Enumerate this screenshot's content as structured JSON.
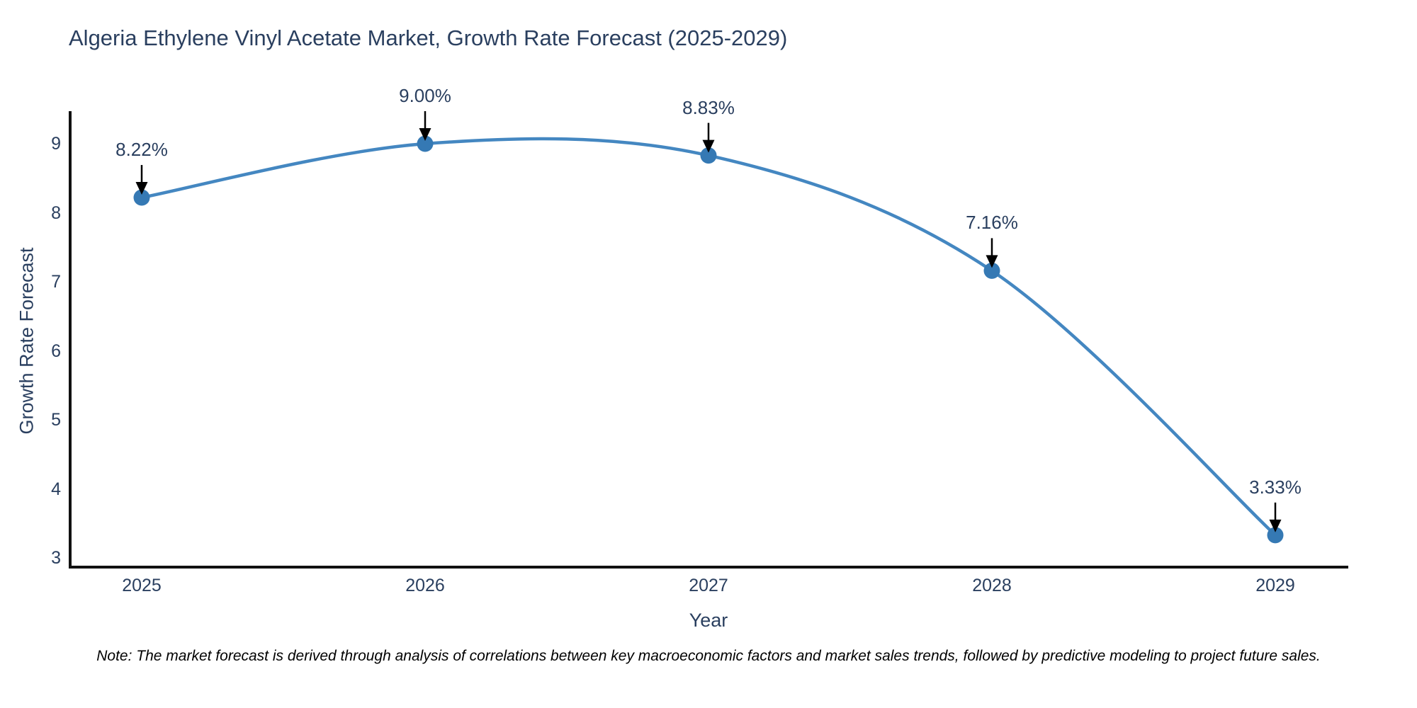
{
  "title": "Algeria Ethylene Vinyl Acetate Market, Growth Rate Forecast (2025-2029)",
  "note": "Note: The market forecast is derived through analysis of correlations between key macroeconomic factors and market sales trends, followed by predictive modeling to project future sales.",
  "chart_data": {
    "type": "line",
    "title": "Algeria Ethylene Vinyl Acetate Market, Growth Rate Forecast (2025-2029)",
    "xlabel": "Year",
    "ylabel": "Growth Rate Forecast",
    "x": [
      2025,
      2026,
      2027,
      2028,
      2029
    ],
    "values": [
      8.22,
      9.0,
      8.83,
      7.16,
      3.33
    ],
    "point_labels": [
      "8.22%",
      "9.00%",
      "8.83%",
      "7.16%",
      "3.33%"
    ],
    "yticks": [
      3,
      4,
      5,
      6,
      7,
      8,
      9
    ],
    "xticks": [
      "2025",
      "2026",
      "2027",
      "2028",
      "2029"
    ],
    "ylim": [
      2.87,
      9.47
    ],
    "grid": false,
    "legend": "none",
    "curve": "spline",
    "annotation_arrows": true,
    "colors": {
      "line": "#4487c1",
      "marker": "#3579b4",
      "axis": "#111111",
      "text": "#2a3f5f",
      "arrow": "#000000",
      "background": "#ffffff"
    }
  }
}
